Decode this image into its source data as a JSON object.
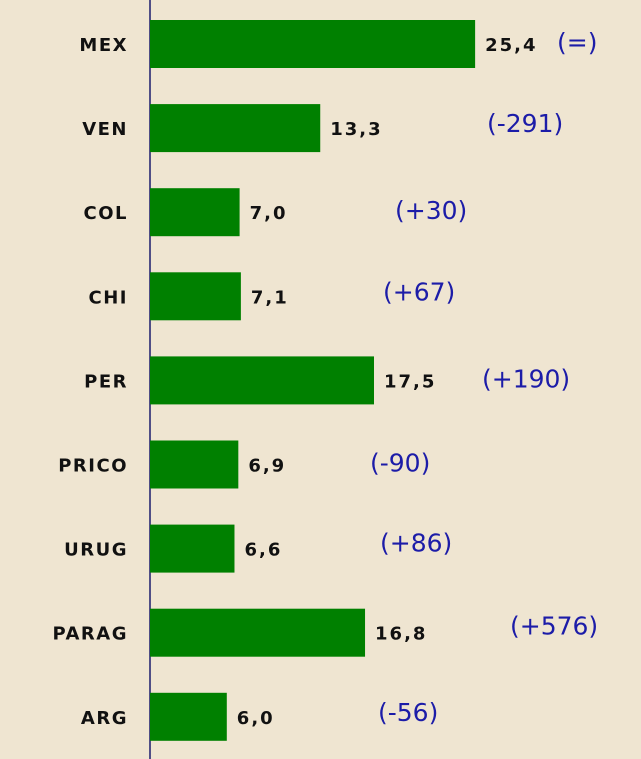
{
  "chart_data": {
    "type": "bar",
    "orientation": "horizontal",
    "categories": [
      "MEX",
      "VEN",
      "COL",
      "CHI",
      "PER",
      "PRICO",
      "URUG",
      "PARAG",
      "ARG"
    ],
    "values": [
      25.4,
      13.3,
      7.0,
      7.1,
      17.5,
      6.9,
      6.6,
      16.8,
      6.0
    ],
    "value_labels": [
      "25,4",
      "13,3",
      "7,0",
      "7,1",
      "17,5",
      "6,9",
      "6,6",
      "16,8",
      "6,0"
    ],
    "annotations": [
      "(=)",
      "(-291)",
      "(+30)",
      "(+67)",
      "(+190)",
      "(-90)",
      "(+86)",
      "(+576)",
      "(-56)"
    ],
    "color": "#008000"
  }
}
